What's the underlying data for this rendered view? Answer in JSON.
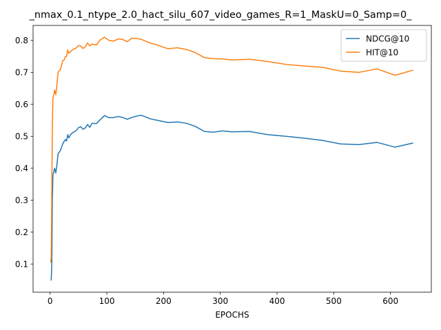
{
  "chart_data": {
    "type": "line",
    "title": "_nmax_0.1_ntype_2.0_hact_silu_607_video_games_R=1_MaskU=0_Samp=0_",
    "xlabel": "EPOCHS",
    "ylabel": "",
    "xlim": [
      -30,
      672
    ],
    "ylim": [
      0.012,
      0.847
    ],
    "xticks": [
      0,
      100,
      200,
      300,
      400,
      500,
      600
    ],
    "yticks": [
      0.1,
      0.2,
      0.3,
      0.4,
      0.5,
      0.6,
      0.7,
      0.8
    ],
    "xtick_labels": [
      "0",
      "100",
      "200",
      "300",
      "400",
      "500",
      "600"
    ],
    "ytick_labels": [
      "0.1",
      "0.2",
      "0.3",
      "0.4",
      "0.5",
      "0.6",
      "0.7",
      "0.8"
    ],
    "grid": false,
    "legend_position": "top-right",
    "series": [
      {
        "name": "NDCG@10",
        "color": "#1f77b4",
        "points": [
          [
            1,
            0.05
          ],
          [
            2,
            0.05
          ],
          [
            3,
            0.1
          ],
          [
            4,
            0.3
          ],
          [
            5,
            0.38
          ],
          [
            6,
            0.385
          ],
          [
            8,
            0.4
          ],
          [
            10,
            0.385
          ],
          [
            12,
            0.41
          ],
          [
            14,
            0.445
          ],
          [
            16,
            0.45
          ],
          [
            18,
            0.455
          ],
          [
            20,
            0.465
          ],
          [
            22,
            0.475
          ],
          [
            25,
            0.485
          ],
          [
            27,
            0.49
          ],
          [
            29,
            0.485
          ],
          [
            31,
            0.505
          ],
          [
            33,
            0.495
          ],
          [
            36,
            0.505
          ],
          [
            40,
            0.512
          ],
          [
            45,
            0.516
          ],
          [
            50,
            0.527
          ],
          [
            54,
            0.53
          ],
          [
            58,
            0.522
          ],
          [
            62,
            0.526
          ],
          [
            66,
            0.537
          ],
          [
            70,
            0.528
          ],
          [
            74,
            0.541
          ],
          [
            78,
            0.54
          ],
          [
            82,
            0.54
          ],
          [
            86,
            0.548
          ],
          [
            90,
            0.555
          ],
          [
            96,
            0.565
          ],
          [
            104,
            0.558
          ],
          [
            112,
            0.559
          ],
          [
            120,
            0.562
          ],
          [
            128,
            0.559
          ],
          [
            136,
            0.553
          ],
          [
            144,
            0.559
          ],
          [
            152,
            0.563
          ],
          [
            160,
            0.566
          ],
          [
            168,
            0.561
          ],
          [
            176,
            0.555
          ],
          [
            192,
            0.549
          ],
          [
            208,
            0.543
          ],
          [
            224,
            0.545
          ],
          [
            240,
            0.541
          ],
          [
            256,
            0.531
          ],
          [
            272,
            0.515
          ],
          [
            288,
            0.513
          ],
          [
            304,
            0.517
          ],
          [
            320,
            0.514
          ],
          [
            352,
            0.515
          ],
          [
            384,
            0.505
          ],
          [
            416,
            0.5
          ],
          [
            448,
            0.494
          ],
          [
            480,
            0.487
          ],
          [
            512,
            0.476
          ],
          [
            544,
            0.474
          ],
          [
            576,
            0.481
          ],
          [
            608,
            0.466
          ],
          [
            640,
            0.479
          ]
        ]
      },
      {
        "name": "HIT@10",
        "color": "#ff7f0e",
        "points": [
          [
            1,
            0.105
          ],
          [
            2,
            0.12
          ],
          [
            3,
            0.32
          ],
          [
            4,
            0.53
          ],
          [
            5,
            0.62
          ],
          [
            6,
            0.625
          ],
          [
            8,
            0.645
          ],
          [
            10,
            0.63
          ],
          [
            12,
            0.66
          ],
          [
            14,
            0.7
          ],
          [
            16,
            0.705
          ],
          [
            18,
            0.708
          ],
          [
            20,
            0.72
          ],
          [
            22,
            0.735
          ],
          [
            25,
            0.74
          ],
          [
            27,
            0.75
          ],
          [
            29,
            0.75
          ],
          [
            31,
            0.77
          ],
          [
            33,
            0.76
          ],
          [
            36,
            0.765
          ],
          [
            40,
            0.772
          ],
          [
            45,
            0.775
          ],
          [
            50,
            0.784
          ],
          [
            54,
            0.783
          ],
          [
            58,
            0.775
          ],
          [
            62,
            0.78
          ],
          [
            66,
            0.792
          ],
          [
            70,
            0.783
          ],
          [
            74,
            0.789
          ],
          [
            78,
            0.787
          ],
          [
            82,
            0.786
          ],
          [
            86,
            0.797
          ],
          [
            90,
            0.804
          ],
          [
            96,
            0.81
          ],
          [
            104,
            0.8
          ],
          [
            112,
            0.798
          ],
          [
            120,
            0.805
          ],
          [
            128,
            0.803
          ],
          [
            136,
            0.796
          ],
          [
            144,
            0.807
          ],
          [
            152,
            0.806
          ],
          [
            160,
            0.804
          ],
          [
            168,
            0.798
          ],
          [
            176,
            0.792
          ],
          [
            192,
            0.784
          ],
          [
            208,
            0.774
          ],
          [
            224,
            0.777
          ],
          [
            240,
            0.772
          ],
          [
            256,
            0.762
          ],
          [
            272,
            0.746
          ],
          [
            288,
            0.743
          ],
          [
            304,
            0.742
          ],
          [
            320,
            0.739
          ],
          [
            352,
            0.741
          ],
          [
            384,
            0.734
          ],
          [
            416,
            0.725
          ],
          [
            448,
            0.72
          ],
          [
            480,
            0.716
          ],
          [
            512,
            0.704
          ],
          [
            544,
            0.7
          ],
          [
            576,
            0.711
          ],
          [
            608,
            0.691
          ],
          [
            640,
            0.707
          ]
        ]
      }
    ]
  }
}
